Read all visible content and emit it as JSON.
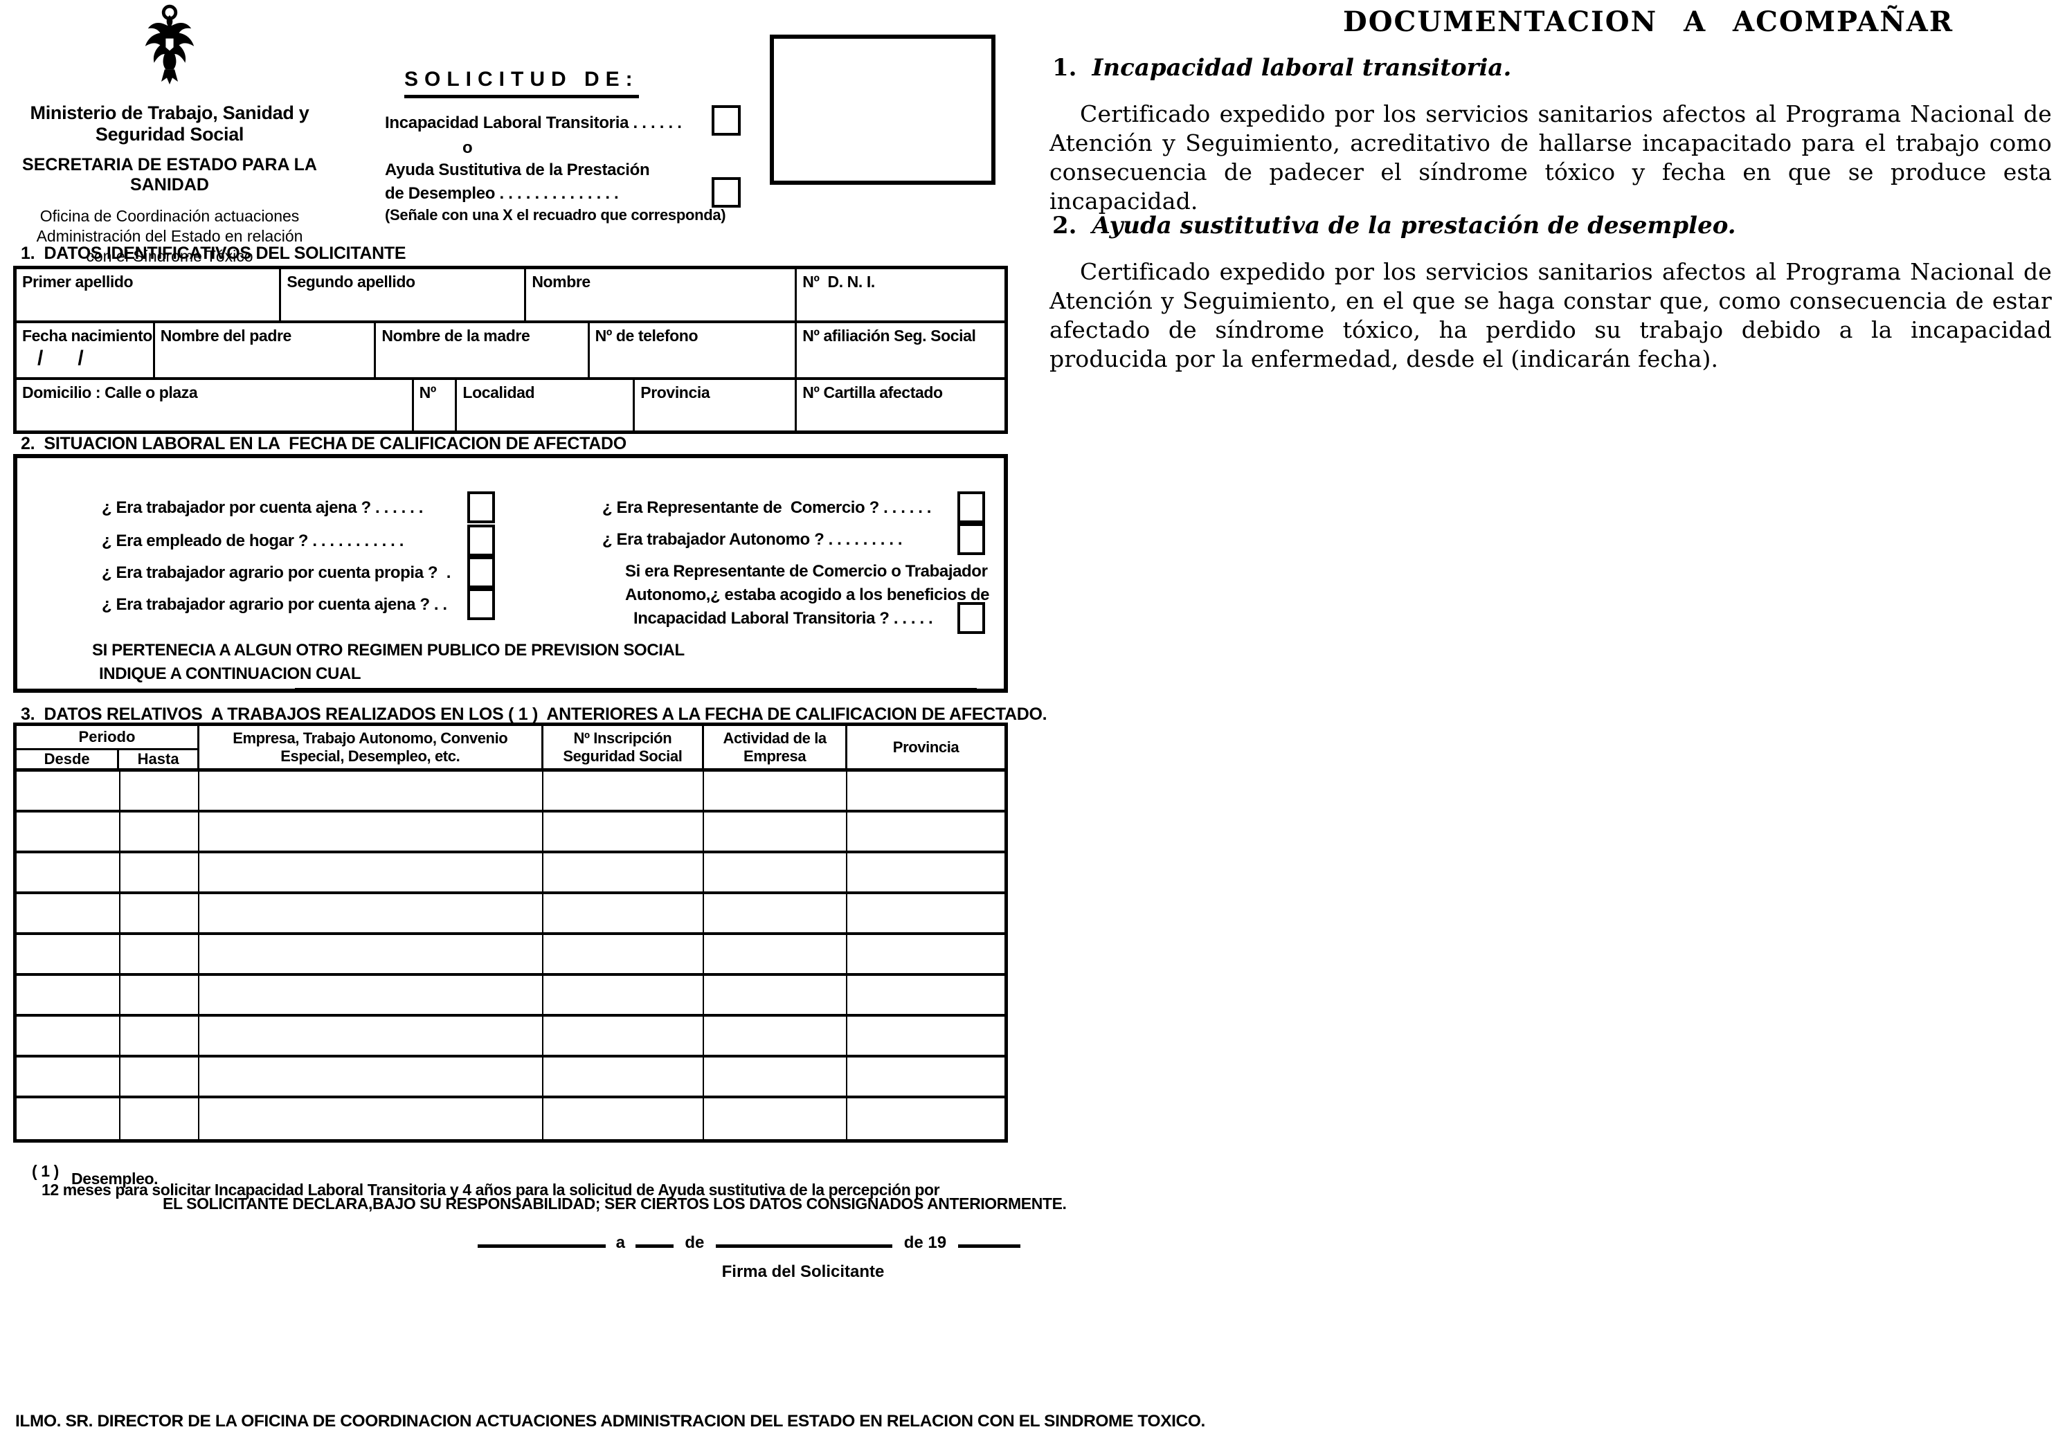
{
  "colors": {
    "ink": "#000000",
    "paper": "#ffffff"
  },
  "header": {
    "ministry": "Ministerio de Trabajo, Sanidad y Seguridad Social",
    "secretaria": "SECRETARIA DE ESTADO PARA LA SANIDAD",
    "office_line1": "Oficina de Coordinación actuaciones",
    "office_line2": "Administración del Estado en relación",
    "office_line3": "con el Síndrome Tóxico"
  },
  "solicitud": {
    "title": "SOLICITUD DE:",
    "option1_label": "Incapacidad Laboral Transitoria . . . . . .",
    "or_label": "o",
    "option2_line1": "Ayuda Sustitutiva de la Prestación",
    "option2_line2": "de Desempleo . . . . . . . . . . . . . .",
    "instruction": "(Señale con una X el recuadro que corresponda)"
  },
  "section1": {
    "title": "1.  DATOS IDENTIFICATIVOS DEL SOLICITANTE",
    "primer_apellido": "Primer apellido",
    "segundo_apellido": "Segundo apellido",
    "nombre": "Nombre",
    "dni": "Nº  D. N. I.",
    "fecha_nacimiento": "Fecha nacimiento",
    "fecha_slashes": "/      /",
    "nombre_padre": "Nombre del padre",
    "nombre_madre": "Nombre de la madre",
    "telefono": "Nº de telefono",
    "afiliacion": "Nº afiliación Seg. Social",
    "domicilio": "Domicilio : Calle o plaza",
    "numero": "Nº",
    "localidad": "Localidad",
    "provincia": "Provincia",
    "cartilla": "Nº Cartilla afectado"
  },
  "section2": {
    "title": "2.  SITUACION LABORAL EN LA  FECHA DE CALIFICACION DE AFECTADO",
    "q_ajena": "¿ Era trabajador por cuenta ajena ? . . . . . .",
    "q_hogar": "¿ Era empleado de hogar ? . . . . . . . . . . .",
    "q_agrario_propia": "¿ Era trabajador agrario por cuenta propia ?  .",
    "q_agrario_ajena": "¿ Era trabajador agrario por cuenta ajena ? . .",
    "q_comercio": "¿ Era Representante de  Comercio ? . . . . . .",
    "q_autonomo": "¿ Era trabajador Autonomo ? . . . . . . . . .",
    "cond_line1": "Si era Representante de Comercio o Trabajador",
    "cond_line2": "Autonomo,¿ estaba acogido a los beneficios de",
    "cond_line3": "Incapacidad Laboral Transitoria ? . . . . .",
    "otro_line1": "SI PERTENECIA A ALGUN OTRO REGIMEN PUBLICO DE PREVISION SOCIAL",
    "otro_line2": "INDIQUE A CONTINUACION CUAL"
  },
  "section3": {
    "title": "3.  DATOS RELATIVOS  A TRABAJOS REALIZADOS EN LOS ( 1 )  ANTERIORES A LA FECHA DE CALIFICACION DE AFECTADO.",
    "h_periodo": "Periodo",
    "h_desde": "Desde",
    "h_hasta": "Hasta",
    "h_empresa": "Empresa, Trabajo Autonomo, Convenio Especial, Desempleo, etc.",
    "h_inscripcion": "Nº Inscripción Seguridad Social",
    "h_actividad": "Actividad de la Empresa",
    "h_provincia": "Provincia",
    "empty_row_count": 9
  },
  "footnote": {
    "marker": "( 1 )",
    "line1": "12 meses para solicitar Incapacidad Laboral Transitoria y 4 años para la solicitud de Ayuda sustitutiva de la percepción por",
    "line2": "Desempleo."
  },
  "declaration": "EL SOLICITANTE DECLARA,BAJO SU RESPONSABILIDAD; SER CIERTOS LOS DATOS CONSIGNADOS ANTERIORMENTE.",
  "signature": {
    "a": "a",
    "de": "de",
    "de19": "de 19",
    "firma": "Firma del Solicitante"
  },
  "addressee": "ILMO. SR. DIRECTOR DE LA OFICINA DE COORDINACION ACTUACIONES ADMINISTRACION DEL ESTADO EN RELACION CON EL SINDROME TOXICO.",
  "docs": {
    "title": "DOCUMENTACION A ACOMPAÑAR",
    "item1_num": "1.",
    "item1_heading": "Incapacidad laboral transitoria.",
    "item1_body": "Certificado expedido por los servicios sanitarios afectos al Programa Nacional de Atención y Seguimiento, acreditativo de hallarse incapacitado para el trabajo como consecuencia de padecer el síndrome tóxico y fecha en que se produce esta incapacidad.",
    "item2_num": "2.",
    "item2_heading": "Ayuda sustitutiva de la prestación de desempleo.",
    "item2_body": "Certificado expedido por los servicios sanitarios afectos al Programa Nacional de Atención y Seguimiento, en el que se haga constar que, como consecuencia de estar afectado de síndrome tóxico, ha perdido su trabajo debido a la incapacidad producida por la enfermedad, desde el (indicarán fecha)."
  }
}
